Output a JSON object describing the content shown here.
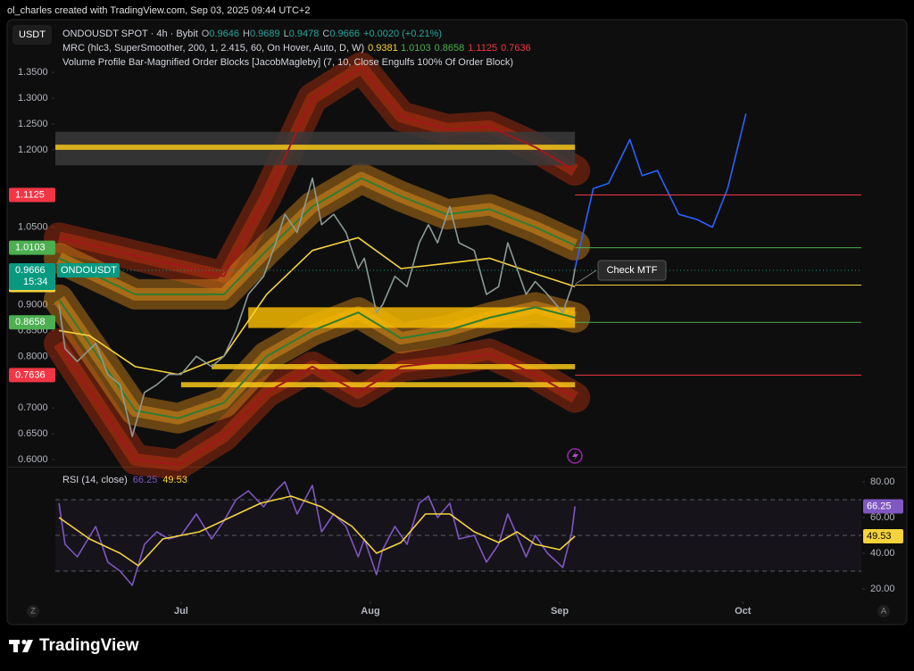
{
  "header": {
    "caption": "ol_charles created with TradingView.com, Sep 03, 2025 09:44 UTC+2",
    "currency": "USDT",
    "brand": "TradingView",
    "left_button": "Z",
    "right_button": "A"
  },
  "chart_data": [
    {
      "type": "line",
      "title": "ONDOUSDT SPOT · 4h · Bybit",
      "ohlc": [
        {
          "label": "O",
          "value": 0.9646
        },
        {
          "label": "H",
          "value": 0.9689
        },
        {
          "label": "L",
          "value": 0.9478
        },
        {
          "label": "C",
          "value": 0.9666
        }
      ],
      "change": "+0.0020 (+0.21%)",
      "indicators": [
        "MRC (hlc3, SuperSmoother, 200, 1, 2.415, 60, On Hover, Auto, D, W)",
        "Volume Profile Bar-Magnified Order Blocks [JacobMagleby] (7, 10, Close Engulfs 100% Of Order Block)"
      ],
      "xlim": [
        -20.6,
        111.4
      ],
      "xticks": [
        {
          "value": 0,
          "label": "Jul"
        },
        {
          "value": 31,
          "label": "Aug"
        },
        {
          "value": 62,
          "label": "Sep"
        },
        {
          "value": 92,
          "label": "Oct"
        }
      ],
      "ylim": [
        0.588,
        1.39
      ],
      "yticks": [
        {
          "value": 1.35,
          "label": "1.3500"
        },
        {
          "value": 1.3,
          "label": "1.3000"
        },
        {
          "value": 1.25,
          "label": "1.2500"
        },
        {
          "value": 1.2,
          "label": "1.2000"
        },
        {
          "value": 1.05,
          "label": "1.0500"
        },
        {
          "value": 0.9,
          "label": "0.9000"
        },
        {
          "value": 0.85,
          "label": "0.8500"
        },
        {
          "value": 0.8,
          "label": "0.8000"
        },
        {
          "value": 0.7,
          "label": "0.7000"
        },
        {
          "value": 0.65,
          "label": "0.6500"
        },
        {
          "value": 0.6,
          "label": "0.6000"
        }
      ],
      "grid": false,
      "series": [
        {
          "color": "#a3171b",
          "fill": "#b5300f",
          "x": [
            -20,
            -7.5,
            7,
            14,
            21.5,
            29.5,
            36,
            43.5,
            50.5,
            58,
            64.5
          ],
          "values": [
            1.03,
            0.995,
            0.955,
            1.11,
            1.3,
            1.36,
            1.265,
            1.24,
            1.245,
            1.205,
            1.16
          ]
        },
        {
          "color": "#a3171b",
          "fill": "#b5300f",
          "x": [
            -20,
            -7.5,
            -0.5,
            7,
            14,
            21.5,
            29,
            36,
            43.5,
            50.5,
            58,
            64.5
          ],
          "values": [
            0.825,
            0.6,
            0.59,
            0.645,
            0.73,
            0.78,
            0.73,
            0.78,
            0.79,
            0.805,
            0.765,
            0.72
          ]
        },
        {
          "color": "#2e7d32",
          "fill": "#d98a1a",
          "x": [
            -20,
            -7.5,
            7,
            14,
            21.5,
            29.5,
            36,
            43.5,
            50.5,
            58,
            64.5
          ],
          "values": [
            0.99,
            0.92,
            0.92,
            1.005,
            1.09,
            1.145,
            1.11,
            1.075,
            1.085,
            1.05,
            1.015
          ]
        },
        {
          "color": "#2e7d32",
          "fill": "#d98a1a",
          "x": [
            -20,
            -7.5,
            -0.5,
            7,
            14,
            21.5,
            29,
            36,
            43.5,
            50.5,
            58,
            64.5
          ],
          "values": [
            0.91,
            0.695,
            0.68,
            0.71,
            0.8,
            0.85,
            0.885,
            0.835,
            0.85,
            0.875,
            0.895,
            0.875
          ]
        },
        {
          "color": "#f5d33b",
          "x": [
            -20,
            -15,
            -7.5,
            -0.5,
            7,
            14,
            21.5,
            29,
            36,
            43.5,
            50.5,
            58,
            64.5
          ],
          "values": [
            0.85,
            0.84,
            0.78,
            0.765,
            0.8,
            0.92,
            1.005,
            1.03,
            0.97,
            0.98,
            0.99,
            0.96,
            0.935
          ]
        },
        {
          "color": "#8c9a94",
          "x": [
            -20,
            -19,
            -17,
            -14,
            -12,
            -10,
            -8,
            -6,
            -4,
            -2,
            0,
            2.5,
            5,
            7,
            9,
            11,
            13.5,
            15.5,
            17,
            19,
            21.5,
            23,
            25,
            27,
            29,
            30,
            32,
            33,
            35,
            37,
            39,
            40.5,
            42,
            44,
            45.5,
            48,
            50,
            52,
            53.5,
            55,
            56.5,
            58,
            60,
            62.5,
            64,
            64.5
          ],
          "values": [
            0.9,
            0.815,
            0.79,
            0.825,
            0.765,
            0.745,
            0.645,
            0.73,
            0.745,
            0.765,
            0.765,
            0.8,
            0.78,
            0.8,
            0.85,
            0.92,
            0.955,
            1.02,
            1.075,
            1.04,
            1.145,
            1.055,
            1.075,
            1.04,
            0.97,
            0.99,
            0.885,
            0.9,
            0.955,
            0.935,
            1.02,
            1.055,
            1.02,
            1.09,
            1.02,
            1.005,
            0.92,
            0.935,
            1.02,
            0.97,
            0.92,
            0.945,
            0.92,
            0.885,
            0.935,
            0.97
          ]
        },
        {
          "color": "#2962ff",
          "x": [
            64.5,
            67.5,
            70,
            73.5,
            75.5,
            78,
            81.5,
            84.5,
            87,
            89.5,
            92.5
          ],
          "values": [
            0.97,
            1.125,
            1.135,
            1.22,
            1.15,
            1.16,
            1.075,
            1.065,
            1.05,
            1.125,
            1.27
          ]
        }
      ],
      "order_blocks": [
        {
          "x": [
            -20.6,
            64.5
          ],
          "top": 1.235,
          "bottom": 1.17,
          "color": "#3a3a3a"
        },
        {
          "x": [
            -20.6,
            64.5
          ],
          "top": 1.21,
          "bottom": 1.2,
          "color": "#f5c518"
        },
        {
          "x": [
            11,
            64.5
          ],
          "top": 0.895,
          "bottom": 0.855,
          "color": "#f5b800"
        },
        {
          "x": [
            5,
            64.5
          ],
          "top": 0.785,
          "bottom": 0.775,
          "color": "#f5c518"
        },
        {
          "x": [
            0,
            64.5
          ],
          "top": 0.75,
          "bottom": 0.74,
          "color": "#f5c518"
        }
      ],
      "levels": [
        {
          "value": 0.9381,
          "color": "#f5d33b"
        },
        {
          "value": 1.0103,
          "color": "#4caf50"
        },
        {
          "value": 0.8658,
          "color": "#4caf50"
        },
        {
          "value": 1.1125,
          "color": "#f23645"
        },
        {
          "value": 0.7636,
          "color": "#f23645"
        }
      ],
      "price_label": {
        "name": "ONDOUSDT",
        "value": 0.9666,
        "countdown": "15:34",
        "color": "#089981"
      },
      "annotation": "Check MTF"
    },
    {
      "type": "line",
      "title": "RSI (14, close)",
      "xlim": [
        -20.6,
        111.4
      ],
      "ylim": [
        16,
        87.5
      ],
      "yticks": [
        {
          "value": 80,
          "label": "80.00"
        },
        {
          "value": 60,
          "label": "60.00"
        },
        {
          "value": 40,
          "label": "40.00"
        },
        {
          "value": 20,
          "label": "20.00"
        }
      ],
      "bands": [
        70,
        50,
        30
      ],
      "band_color": "#7e57c2",
      "series": [
        {
          "color": "#7e57c2",
          "x": [
            -20,
            -19,
            -17,
            -14,
            -12,
            -10,
            -8,
            -6,
            -4,
            -2,
            0,
            2.5,
            5,
            7,
            9,
            11,
            13.5,
            15.5,
            17,
            19,
            21.5,
            23,
            25,
            27,
            29,
            30,
            32,
            33,
            35,
            37,
            39,
            40.5,
            42,
            44,
            45.5,
            48,
            50,
            52,
            53.5,
            55,
            56.5,
            58,
            60,
            62.5,
            64,
            64.5
          ],
          "values": [
            68,
            45,
            38,
            55,
            35,
            30,
            22,
            45,
            52,
            48,
            50,
            62,
            48,
            58,
            70,
            75,
            66,
            75,
            80,
            62,
            78,
            52,
            62,
            55,
            38,
            48,
            28,
            42,
            55,
            45,
            68,
            72,
            60,
            68,
            48,
            50,
            35,
            45,
            62,
            50,
            38,
            50,
            40,
            32,
            52,
            66.25
          ]
        },
        {
          "color": "#f5d33b",
          "x": [
            -20,
            -15,
            -10,
            -7,
            -3,
            3,
            8,
            13,
            18,
            23,
            28,
            32,
            36,
            40,
            44,
            48,
            52,
            55,
            58,
            62,
            64.5
          ],
          "values": [
            60,
            48,
            40,
            33,
            48,
            52,
            60,
            68,
            72,
            66,
            55,
            40,
            46,
            62,
            62,
            52,
            46,
            52,
            45,
            42,
            49.53
          ]
        }
      ]
    }
  ]
}
